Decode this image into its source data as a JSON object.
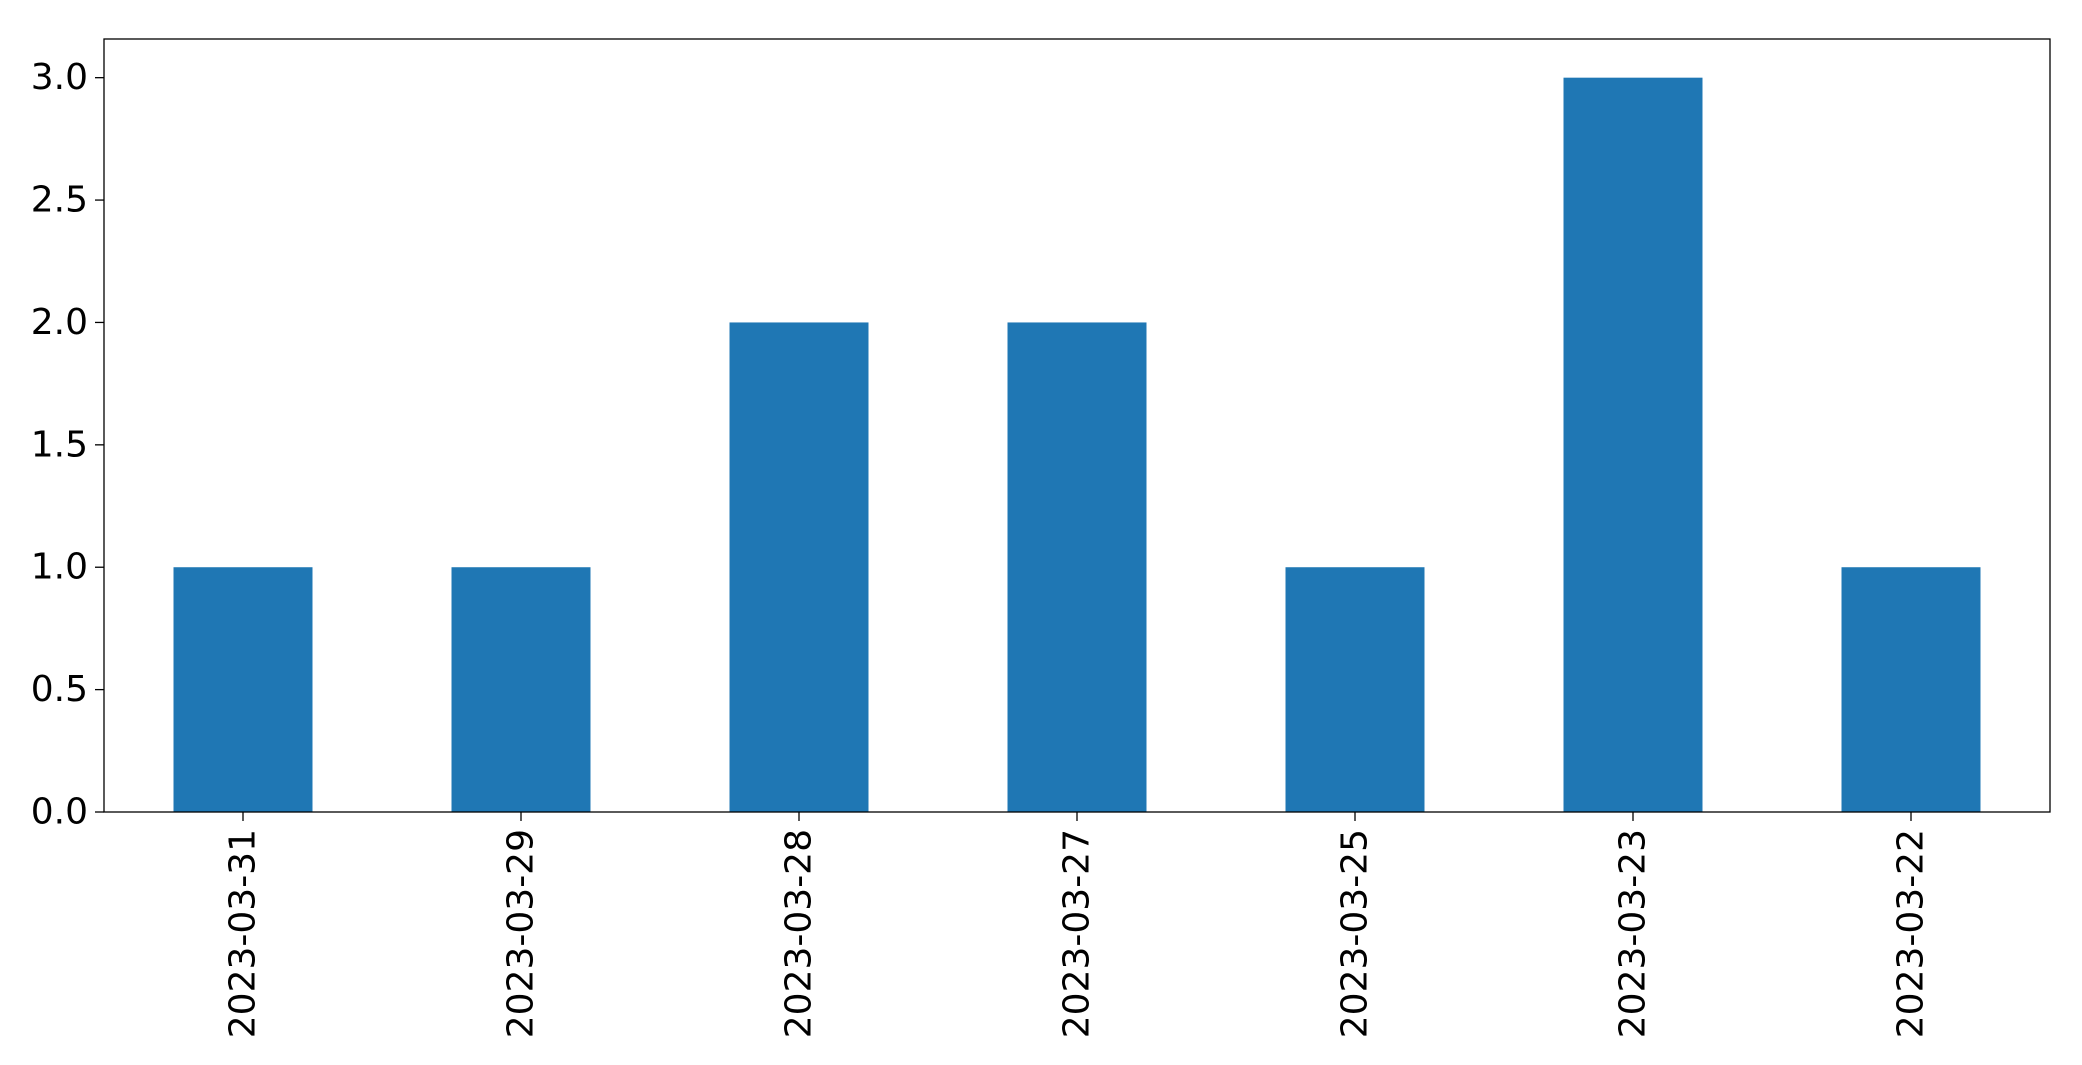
{
  "chart_data": {
    "type": "bar",
    "title": "",
    "xlabel": "",
    "ylabel": "",
    "categories": [
      "2023-03-31",
      "2023-03-29",
      "2023-03-28",
      "2023-03-27",
      "2023-03-25",
      "2023-03-23",
      "2023-03-22"
    ],
    "values": [
      1,
      1,
      2,
      2,
      1,
      3,
      1
    ],
    "ylim": [
      0,
      3.158
    ],
    "yticks": [
      0.0,
      0.5,
      1.0,
      1.5,
      2.0,
      2.5,
      3.0
    ],
    "ytick_labels": [
      "0.0",
      "0.5",
      "1.0",
      "1.5",
      "2.0",
      "2.5",
      "3.0"
    ],
    "grid": false,
    "legend": "none",
    "colors": {
      "bar": "#1f77b4",
      "axis": "#000000",
      "background": "#ffffff"
    }
  }
}
